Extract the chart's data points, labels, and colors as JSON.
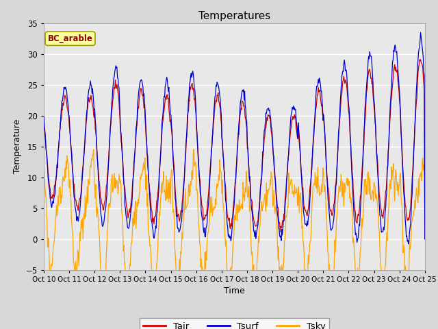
{
  "title": "Temperatures",
  "xlabel": "Time",
  "ylabel": "Temperature",
  "ylim": [
    -5,
    35
  ],
  "x_tick_labels": [
    "Oct 10",
    "Oct 11",
    "Oct 12",
    "Oct 13",
    "Oct 14",
    "Oct 15",
    "Oct 16",
    "Oct 17",
    "Oct 18",
    "Oct 19",
    "Oct 20",
    "Oct 21",
    "Oct 22",
    "Oct 23",
    "Oct 24",
    "Oct 25"
  ],
  "legend_label": "BC_arable",
  "line_colors": {
    "Tair": "#CC0000",
    "Tsurf": "#0000CC",
    "Tsky": "#FFA500"
  },
  "background_color": "#E8E8E8",
  "yticks": [
    -5,
    0,
    5,
    10,
    15,
    20,
    25,
    30,
    35
  ],
  "n_days": 15,
  "seed": 42
}
